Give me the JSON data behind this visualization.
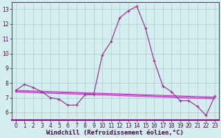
{
  "x": [
    0,
    1,
    2,
    3,
    4,
    5,
    6,
    7,
    8,
    9,
    10,
    11,
    12,
    13,
    14,
    15,
    16,
    17,
    18,
    19,
    20,
    21,
    22,
    23
  ],
  "y_main": [
    7.5,
    7.9,
    7.7,
    7.4,
    7.0,
    6.9,
    6.5,
    6.5,
    7.2,
    7.2,
    9.9,
    10.8,
    12.4,
    12.9,
    13.2,
    11.7,
    9.5,
    7.8,
    7.4,
    6.8,
    6.8,
    6.4,
    5.8,
    7.1
  ],
  "y_trend1": [
    7.5,
    7.48,
    7.46,
    7.44,
    7.42,
    7.4,
    7.38,
    7.36,
    7.34,
    7.32,
    7.3,
    7.28,
    7.26,
    7.24,
    7.22,
    7.2,
    7.18,
    7.16,
    7.14,
    7.12,
    7.1,
    7.08,
    7.06,
    7.04
  ],
  "y_trend2": [
    7.45,
    7.43,
    7.41,
    7.39,
    7.37,
    7.35,
    7.33,
    7.31,
    7.29,
    7.27,
    7.25,
    7.23,
    7.21,
    7.19,
    7.17,
    7.15,
    7.13,
    7.11,
    7.09,
    7.07,
    7.05,
    7.03,
    7.01,
    6.99
  ],
  "y_trend3": [
    7.38,
    7.36,
    7.34,
    7.32,
    7.3,
    7.28,
    7.26,
    7.24,
    7.22,
    7.2,
    7.18,
    7.16,
    7.14,
    7.12,
    7.1,
    7.08,
    7.06,
    7.04,
    7.02,
    7.0,
    6.98,
    6.96,
    6.94,
    6.92
  ],
  "line_color": "#993399",
  "trend_color": "#cc44cc",
  "bg_color": "#d4eef0",
  "grid_color": "#aacccc",
  "xlabel": "Windchill (Refroidissement éolien,°C)",
  "ylim": [
    5.5,
    13.5
  ],
  "xlim": [
    -0.5,
    23.5
  ],
  "yticks": [
    6,
    7,
    8,
    9,
    10,
    11,
    12,
    13
  ],
  "xticks": [
    0,
    1,
    2,
    3,
    4,
    5,
    6,
    7,
    8,
    9,
    10,
    11,
    12,
    13,
    14,
    15,
    16,
    17,
    18,
    19,
    20,
    21,
    22,
    23
  ],
  "tick_fontsize": 5.5,
  "xlabel_fontsize": 6.5
}
